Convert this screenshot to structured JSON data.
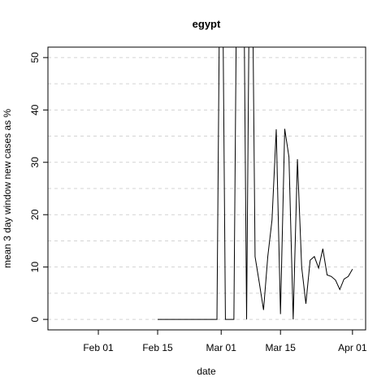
{
  "chart_data": {
    "type": "line",
    "title": "egypt",
    "x_label": "date",
    "y_label": "mean  3  day window new cases as %",
    "x": [
      45,
      46,
      47,
      48,
      49,
      50,
      51,
      52,
      53,
      54,
      55,
      56,
      57,
      58,
      59,
      60,
      61,
      62,
      63,
      64,
      65,
      66,
      67,
      68,
      69,
      70,
      71,
      72,
      73,
      74,
      75,
      76,
      77,
      78,
      79,
      80,
      81,
      82,
      83,
      84,
      85,
      86,
      87,
      88,
      89,
      90,
      91
    ],
    "series": [
      {
        "name": "egypt",
        "color": "#000000",
        "values": [
          0,
          0,
          0,
          0,
          0,
          0,
          0,
          0,
          0,
          0,
          0,
          0,
          0,
          0,
          0,
          100,
          0,
          0,
          0,
          100,
          100,
          0,
          100,
          12,
          7,
          1.8,
          12,
          19,
          36.3,
          1,
          36.4,
          31,
          0,
          30.6,
          10,
          3,
          11.3,
          12,
          9.8,
          13.5,
          8.5,
          8.2,
          7.5,
          5.7,
          7.7,
          8.2,
          9.6
        ]
      }
    ],
    "xlim": [
      19.1,
      94.1
    ],
    "xticks": [
      {
        "value": 31,
        "label": "Feb 01"
      },
      {
        "value": 45,
        "label": "Feb 15"
      },
      {
        "value": 60,
        "label": "Mar 01"
      },
      {
        "value": 74,
        "label": "Mar 15"
      },
      {
        "value": 91,
        "label": "Apr 01"
      }
    ],
    "ylim": [
      -2,
      52
    ],
    "yticks": [
      0,
      10,
      20,
      30,
      40,
      50
    ],
    "ygrid": [
      0,
      5,
      10,
      15,
      20,
      25,
      30,
      35,
      40,
      45,
      50
    ],
    "grid": true
  }
}
